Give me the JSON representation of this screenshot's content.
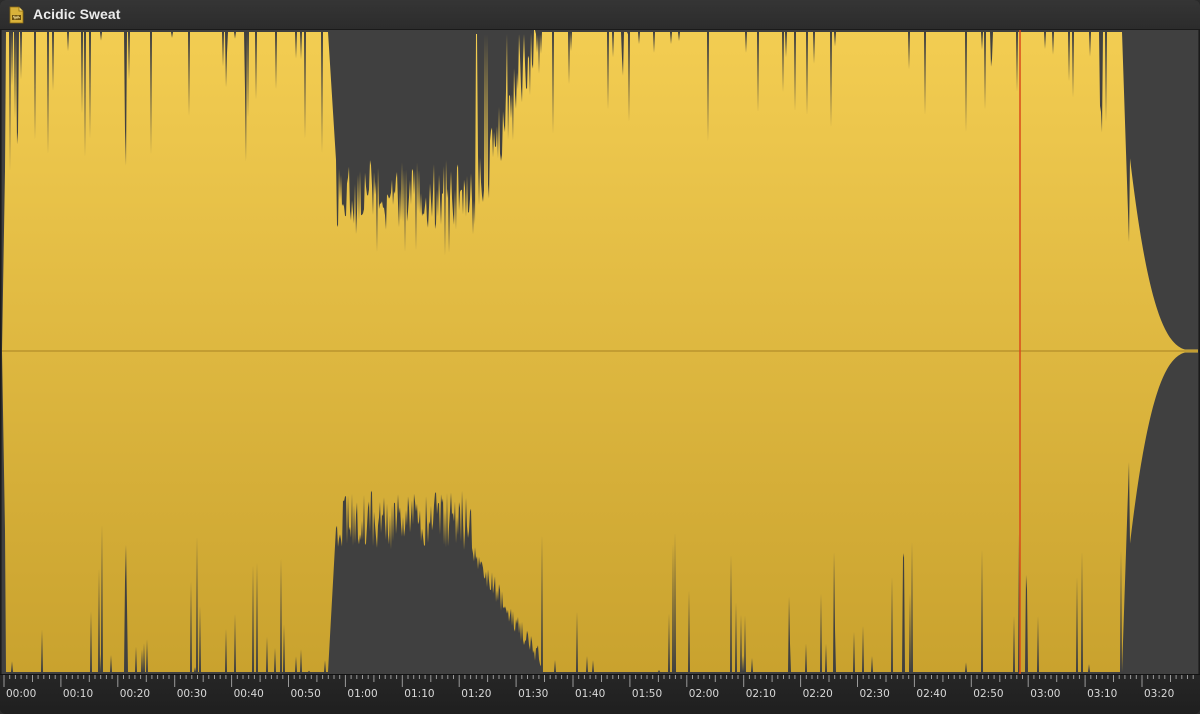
{
  "window": {
    "title": "Acidic Sweat",
    "file_icon": "audio-file-icon"
  },
  "colors": {
    "waveform_top": "#f3cd52",
    "waveform_bottom": "#c9a22e",
    "background": "#404040",
    "playhead": "#d94a1a",
    "centerline": "#a88324"
  },
  "timeline": {
    "labels": [
      "00:00",
      "00:10",
      "00:20",
      "00:30",
      "00:40",
      "00:50",
      "01:00",
      "01:10",
      "01:20",
      "01:30",
      "01:40",
      "01:50",
      "02:00",
      "02:10",
      "02:20",
      "02:30",
      "02:40",
      "02:50",
      "03:00",
      "03:10",
      "03:20"
    ],
    "playhead_time": "02:57",
    "duration": "03:17"
  }
}
